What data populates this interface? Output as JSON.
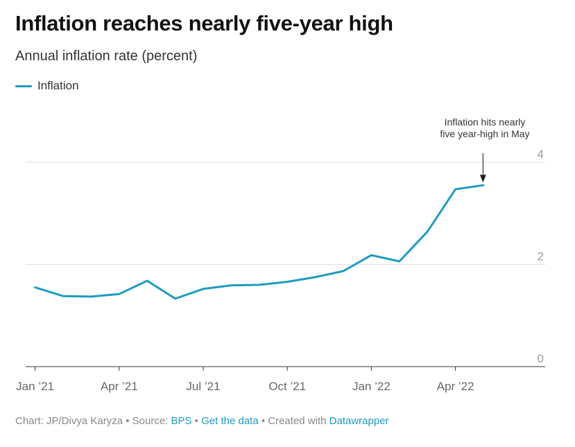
{
  "header": {
    "title": "Inflation reaches nearly five-year high",
    "subtitle": "Annual inflation rate (percent)"
  },
  "legend": {
    "label": "Inflation",
    "color": "#1d9bc0"
  },
  "annotation": {
    "text": "Inflation hits nearly five year-high in May"
  },
  "footer": {
    "prefix": "Chart: JP/Divya Karyza • Source: ",
    "source_link": "BPS",
    "sep1": " • ",
    "data_link": "Get the data",
    "sep2": " • Created with ",
    "dw_link": "Datawrapper"
  },
  "chart_data": {
    "type": "line",
    "title": "Inflation reaches nearly five-year high",
    "subtitle": "Annual inflation rate (percent)",
    "xlabel": "",
    "ylabel": "",
    "ylim": [
      0,
      4
    ],
    "yticks": [
      0,
      2,
      4
    ],
    "x_ticks": [
      {
        "label": "Jan ’21",
        "index": 0
      },
      {
        "label": "Apr ’21",
        "index": 3
      },
      {
        "label": "Jul ’21",
        "index": 6
      },
      {
        "label": "Oct ’21",
        "index": 9
      },
      {
        "label": "Jan ’22",
        "index": 12
      },
      {
        "label": "Apr ’22",
        "index": 15
      }
    ],
    "x_range": [
      0,
      18
    ],
    "categories": [
      "Jan 2021",
      "Feb 2021",
      "Mar 2021",
      "Apr 2021",
      "May 2021",
      "Jun 2021",
      "Jul 2021",
      "Aug 2021",
      "Sep 2021",
      "Oct 2021",
      "Nov 2021",
      "Dec 2021",
      "Jan 2022",
      "Feb 2022",
      "Mar 2022",
      "Apr 2022",
      "May 2022"
    ],
    "series": [
      {
        "name": "Inflation",
        "color": "#1d9bc0",
        "values": [
          1.55,
          1.38,
          1.37,
          1.42,
          1.68,
          1.33,
          1.52,
          1.59,
          1.6,
          1.66,
          1.75,
          1.87,
          2.18,
          2.06,
          2.64,
          3.47,
          3.55
        ]
      }
    ],
    "annotation": {
      "text": "Inflation hits nearly five year-high in May",
      "index": 16
    }
  }
}
